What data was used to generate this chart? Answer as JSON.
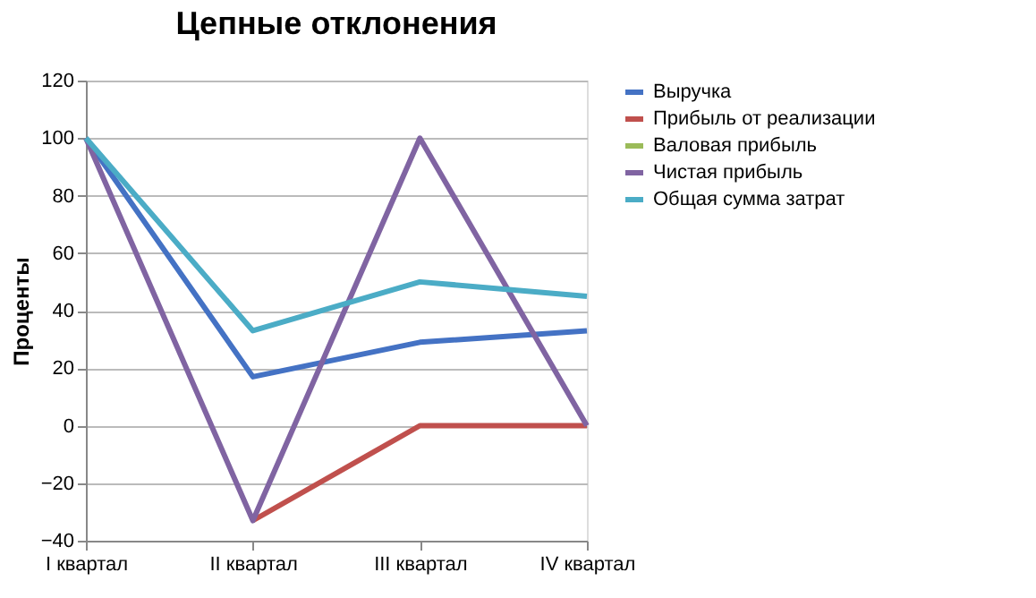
{
  "chart_data": {
    "type": "line",
    "title": "Цепные отклонения",
    "ylabel": "Проценты",
    "categories": [
      "I квартал",
      "II квартал",
      "III квартал",
      "IV квартал"
    ],
    "series": [
      {
        "name": "Выручка",
        "color": "#4472c4",
        "values": [
          100,
          17,
          29,
          33
        ]
      },
      {
        "name": "Прибыль от реализации",
        "color": "#c0504d",
        "values": [
          null,
          -33,
          0,
          0
        ]
      },
      {
        "name": "Валовая прибыль",
        "color": "#9bbb59",
        "values": [
          null,
          null,
          null,
          null
        ]
      },
      {
        "name": "Чистая прибыль",
        "color": "#8064a2",
        "values": [
          100,
          -33,
          100,
          0
        ]
      },
      {
        "name": "Общая сумма затрат",
        "color": "#4bacc6",
        "values": [
          100,
          33,
          50,
          45
        ]
      }
    ],
    "ylim": [
      -40,
      120
    ],
    "yticks": [
      -40,
      -20,
      0,
      20,
      40,
      60,
      80,
      100,
      120
    ],
    "grid": "y",
    "legend": "right",
    "marker": "none",
    "line_style": "solid"
  }
}
